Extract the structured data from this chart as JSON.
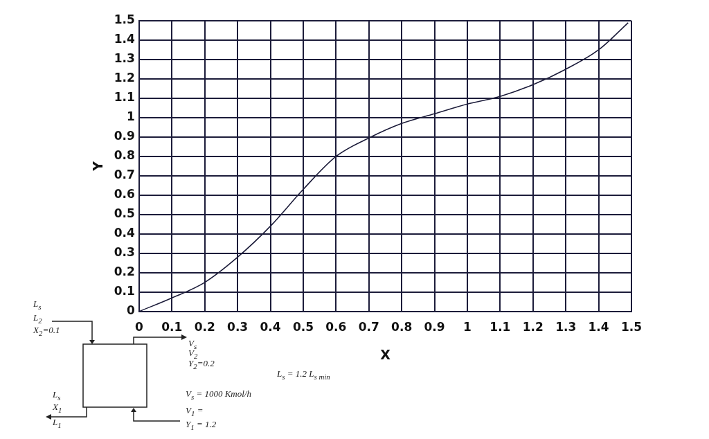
{
  "chart_data": {
    "type": "line",
    "xlabel": "X",
    "ylabel": "Y",
    "x": [
      0,
      0.1,
      0.2,
      0.3,
      0.4,
      0.5,
      0.6,
      0.7,
      0.8,
      0.9,
      1.0,
      1.1,
      1.2,
      1.3,
      1.4,
      1.49
    ],
    "series": [
      {
        "color": "#1c1c3a",
        "values": [
          0,
          0.07,
          0.15,
          0.28,
          0.44,
          0.63,
          0.8,
          0.895,
          0.97,
          1.02,
          1.07,
          1.11,
          1.17,
          1.25,
          1.35,
          1.49
        ]
      }
    ],
    "xlim": [
      0,
      1.5
    ],
    "ylim": [
      0,
      1.5
    ],
    "xticks": [
      0,
      0.1,
      0.2,
      0.3,
      0.4,
      0.5,
      0.6,
      0.7,
      0.8,
      0.9,
      1,
      1.1,
      1.2,
      1.3,
      1.4,
      1.5
    ],
    "yticks": [
      0,
      0.1,
      0.2,
      0.3,
      0.4,
      0.5,
      0.6,
      0.7,
      0.8,
      0.9,
      1,
      1.1,
      1.2,
      1.3,
      1.4,
      1.5
    ],
    "grid": true,
    "marker": "none",
    "line_style": "solid",
    "legend": false,
    "annotations": [
      "L$_{s}$",
      "L$_{2}$",
      "X$_{2}$=0.1",
      "V$_{s}$",
      "V$_{2}$",
      "Y$_{2}$=0.2",
      "L$_{s}$ = 1.2 L$_{s min}$",
      "V$_{s}$ = 1000 Kmol/h",
      "V$_{1}$ =",
      "Y$_{1}$ = 1.2",
      "L$_{s}$",
      "X$_{1}$",
      "L$_{1}$"
    ]
  }
}
